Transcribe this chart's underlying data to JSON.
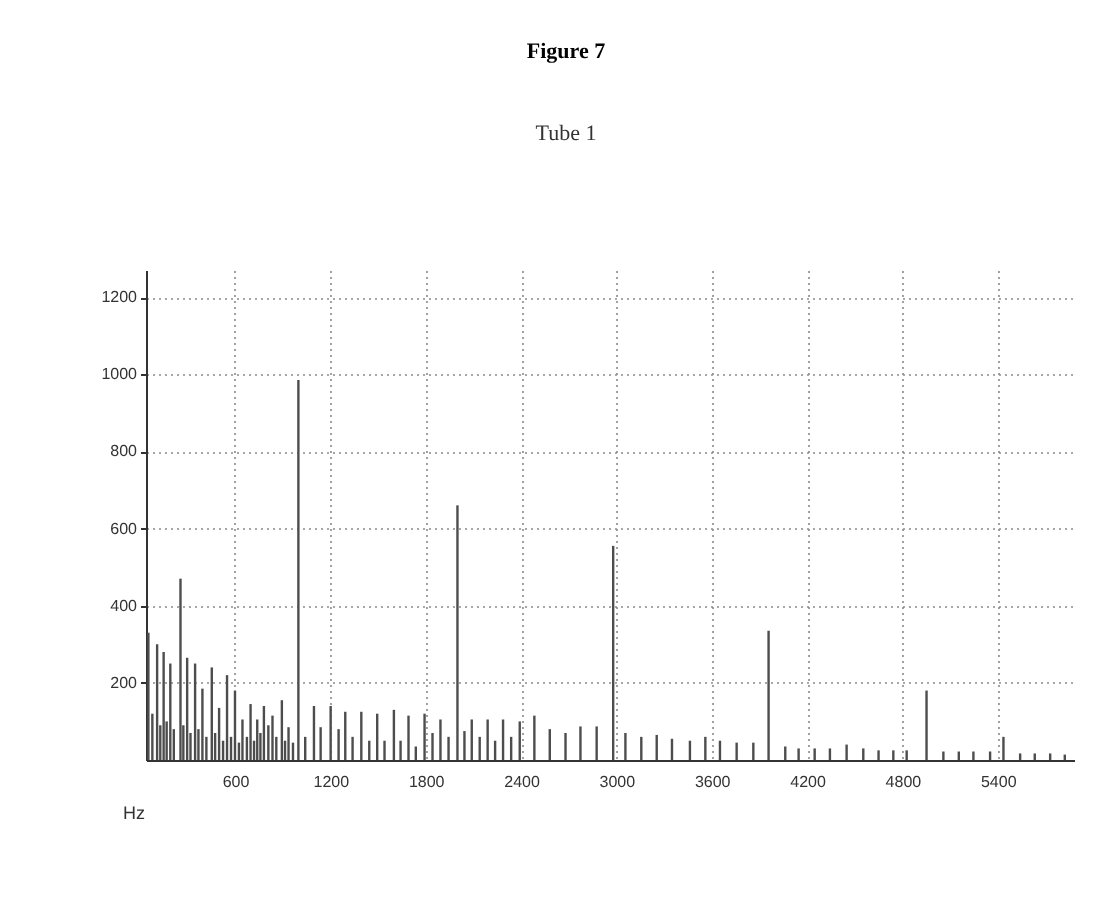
{
  "chart_data": {
    "type": "bar",
    "title": "Figure 7",
    "subtitle": "Tube 1",
    "xlabel": "Hz",
    "x": [
      55,
      80,
      110,
      130,
      151,
      170,
      193,
      215,
      257,
      275,
      299,
      320,
      349,
      370,
      395,
      420,
      454,
      475,
      500,
      525,
      550,
      575,
      600,
      625,
      647,
      675,
      698,
      720,
      740,
      760,
      782,
      810,
      836,
      860,
      895,
      915,
      937,
      965,
      999,
      1042,
      1097,
      1139,
      1202,
      1252,
      1294,
      1340,
      1395,
      1445,
      1495,
      1541,
      1600,
      1642,
      1692,
      1738,
      1793,
      1843,
      1893,
      1944,
      2000,
      2044,
      2090,
      2140,
      2190,
      2237,
      2287,
      2338,
      2392,
      2484,
      2581,
      2680,
      2774,
      2876,
      2980,
      3057,
      3157,
      3254,
      3350,
      3463,
      3560,
      3652,
      3757,
      3862,
      3958,
      4063,
      4147,
      4248,
      4344,
      4449,
      4554,
      4650,
      4743,
      4827,
      4952,
      5058,
      5155,
      5247,
      5352,
      5436,
      5541,
      5633,
      5730,
      5822
    ],
    "values": [
      330,
      120,
      300,
      90,
      280,
      100,
      250,
      80,
      470,
      90,
      265,
      70,
      250,
      80,
      185,
      60,
      240,
      70,
      135,
      50,
      220,
      60,
      180,
      45,
      105,
      60,
      145,
      50,
      105,
      70,
      140,
      90,
      115,
      60,
      155,
      50,
      85,
      45,
      985,
      60,
      140,
      85,
      140,
      80,
      125,
      60,
      125,
      50,
      120,
      50,
      130,
      50,
      115,
      35,
      120,
      70,
      105,
      60,
      660,
      75,
      105,
      60,
      105,
      50,
      105,
      60,
      100,
      115,
      80,
      70,
      87,
      87,
      555,
      70,
      60,
      65,
      55,
      50,
      60,
      50,
      45,
      45,
      335,
      35,
      30,
      30,
      30,
      40,
      30,
      25,
      25,
      25,
      180,
      22,
      22,
      22,
      22,
      60,
      17,
      17,
      17,
      14
    ],
    "color": "#4d4d4d",
    "xlim": [
      40,
      5880
    ],
    "ylim": [
      0,
      1270
    ],
    "xticks": [
      600,
      1200,
      1800,
      2400,
      3000,
      3600,
      4200,
      4800,
      5400
    ],
    "yticks": [
      200,
      400,
      600,
      800,
      1000,
      1200
    ],
    "grid": true
  }
}
